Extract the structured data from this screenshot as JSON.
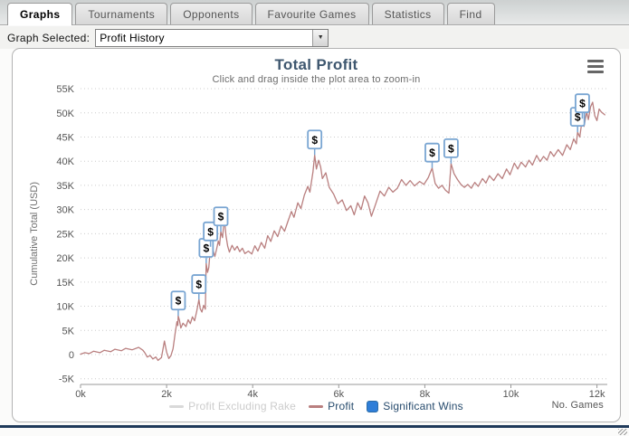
{
  "tabs": [
    {
      "label": "Graphs",
      "active": true
    },
    {
      "label": "Tournaments",
      "active": false
    },
    {
      "label": "Opponents",
      "active": false
    },
    {
      "label": "Favourite Games",
      "active": false
    },
    {
      "label": "Statistics",
      "active": false
    },
    {
      "label": "Find",
      "active": false
    }
  ],
  "graph_selector": {
    "label": "Graph Selected:",
    "value": "Profit History"
  },
  "chart_data": {
    "type": "line",
    "title": "Total Profit",
    "subtitle": "Click and drag inside the plot area to zoom-in",
    "xlabel": "No. Games",
    "ylabel": "Cumulative Total (USD)",
    "x_unit": "thousands of games",
    "xlim": [
      0,
      12.2
    ],
    "ylim": [
      -5,
      55
    ],
    "grid": "horizontal-dotted",
    "legend_position": "bottom",
    "x_tick_values": [
      0,
      2,
      4,
      6,
      8,
      10,
      12
    ],
    "x_ticks": [
      "0k",
      "2k",
      "4k",
      "6k",
      "8k",
      "10k",
      "12k"
    ],
    "y_tick_values": [
      -5,
      0,
      5,
      10,
      15,
      20,
      25,
      30,
      35,
      40,
      45,
      50,
      55
    ],
    "y_ticks": [
      "-5K",
      "0",
      "5K",
      "10K",
      "15K",
      "20K",
      "25K",
      "30K",
      "35K",
      "40K",
      "45K",
      "50K",
      "55K"
    ],
    "colors": {
      "grid": "#cccccc",
      "axis": "#999999",
      "tick_label": "#555555",
      "axis_title": "#707070",
      "marker_fill": "#ffffff",
      "marker_border": "#79a5d2",
      "marker_glyph": "#000000"
    },
    "legend": [
      {
        "label": "Profit Excluding Rake",
        "type": "line",
        "color": "#d9d9d9",
        "disabled": true
      },
      {
        "label": "Profit",
        "type": "line",
        "color": "#b97f7f",
        "disabled": false
      },
      {
        "label": "Significant Wins",
        "type": "box",
        "color": "#2f7ed8",
        "disabled": false
      }
    ],
    "marker_symbol": "$",
    "series": [
      {
        "name": "Profit",
        "color": "#b97f7f",
        "points": [
          [
            0.0,
            0.1
          ],
          [
            0.1,
            0.4
          ],
          [
            0.2,
            0.2
          ],
          [
            0.3,
            0.7
          ],
          [
            0.45,
            0.4
          ],
          [
            0.55,
            0.9
          ],
          [
            0.7,
            0.6
          ],
          [
            0.8,
            1.1
          ],
          [
            0.95,
            0.8
          ],
          [
            1.05,
            1.3
          ],
          [
            1.2,
            1.0
          ],
          [
            1.35,
            1.5
          ],
          [
            1.45,
            0.9
          ],
          [
            1.5,
            0.3
          ],
          [
            1.55,
            -0.5
          ],
          [
            1.62,
            -0.2
          ],
          [
            1.68,
            -0.9
          ],
          [
            1.75,
            -0.5
          ],
          [
            1.8,
            -1.2
          ],
          [
            1.88,
            -0.6
          ],
          [
            1.95,
            2.8
          ],
          [
            2.0,
            0.5
          ],
          [
            2.05,
            -0.8
          ],
          [
            2.1,
            -0.2
          ],
          [
            2.15,
            1.2
          ],
          [
            2.2,
            4.5
          ],
          [
            2.24,
            6.8
          ],
          [
            2.26,
            6.0
          ],
          [
            2.27,
            8.0
          ],
          [
            2.3,
            7.0
          ],
          [
            2.33,
            5.5
          ],
          [
            2.38,
            6.5
          ],
          [
            2.45,
            5.8
          ],
          [
            2.5,
            7.2
          ],
          [
            2.55,
            6.4
          ],
          [
            2.6,
            7.8
          ],
          [
            2.65,
            7.0
          ],
          [
            2.7,
            9.0
          ],
          [
            2.75,
            11.4
          ],
          [
            2.78,
            9.5
          ],
          [
            2.82,
            8.8
          ],
          [
            2.86,
            10.2
          ],
          [
            2.9,
            9.4
          ],
          [
            2.92,
            18.9
          ],
          [
            2.95,
            17.0
          ],
          [
            2.98,
            18.0
          ],
          [
            3.02,
            22.3
          ],
          [
            3.05,
            20.5
          ],
          [
            3.08,
            21.5
          ],
          [
            3.12,
            20.3
          ],
          [
            3.16,
            21.8
          ],
          [
            3.2,
            23.5
          ],
          [
            3.23,
            22.6
          ],
          [
            3.26,
            25.4
          ],
          [
            3.3,
            24.2
          ],
          [
            3.34,
            28.2
          ],
          [
            3.38,
            24.6
          ],
          [
            3.42,
            22.4
          ],
          [
            3.46,
            21.2
          ],
          [
            3.52,
            22.6
          ],
          [
            3.58,
            21.6
          ],
          [
            3.64,
            22.4
          ],
          [
            3.7,
            21.3
          ],
          [
            3.76,
            22.0
          ],
          [
            3.82,
            20.9
          ],
          [
            3.9,
            21.4
          ],
          [
            3.98,
            20.8
          ],
          [
            4.05,
            22.5
          ],
          [
            4.12,
            21.4
          ],
          [
            4.2,
            23.2
          ],
          [
            4.28,
            22.0
          ],
          [
            4.35,
            24.6
          ],
          [
            4.42,
            23.4
          ],
          [
            4.5,
            25.6
          ],
          [
            4.58,
            24.4
          ],
          [
            4.66,
            26.6
          ],
          [
            4.74,
            25.5
          ],
          [
            4.82,
            27.6
          ],
          [
            4.9,
            29.6
          ],
          [
            4.96,
            28.4
          ],
          [
            5.05,
            31.4
          ],
          [
            5.12,
            30.2
          ],
          [
            5.2,
            33.0
          ],
          [
            5.28,
            34.8
          ],
          [
            5.33,
            33.6
          ],
          [
            5.4,
            37.8
          ],
          [
            5.44,
            41.3
          ],
          [
            5.48,
            38.4
          ],
          [
            5.53,
            40.2
          ],
          [
            5.58,
            38.8
          ],
          [
            5.62,
            36.4
          ],
          [
            5.7,
            37.6
          ],
          [
            5.78,
            34.6
          ],
          [
            5.88,
            33.2
          ],
          [
            5.98,
            31.2
          ],
          [
            6.08,
            32.0
          ],
          [
            6.18,
            29.8
          ],
          [
            6.28,
            30.8
          ],
          [
            6.36,
            28.9
          ],
          [
            6.44,
            31.4
          ],
          [
            6.52,
            30.0
          ],
          [
            6.6,
            32.8
          ],
          [
            6.68,
            31.4
          ],
          [
            6.76,
            28.6
          ],
          [
            6.86,
            31.2
          ],
          [
            6.96,
            33.8
          ],
          [
            7.06,
            32.8
          ],
          [
            7.16,
            34.6
          ],
          [
            7.26,
            33.6
          ],
          [
            7.36,
            34.4
          ],
          [
            7.46,
            36.2
          ],
          [
            7.56,
            35.0
          ],
          [
            7.66,
            36.0
          ],
          [
            7.76,
            34.9
          ],
          [
            7.88,
            35.8
          ],
          [
            7.98,
            35.2
          ],
          [
            8.08,
            36.6
          ],
          [
            8.17,
            38.6
          ],
          [
            8.24,
            35.4
          ],
          [
            8.32,
            34.4
          ],
          [
            8.4,
            35.0
          ],
          [
            8.48,
            34.0
          ],
          [
            8.56,
            33.4
          ],
          [
            8.61,
            39.5
          ],
          [
            8.68,
            37.4
          ],
          [
            8.76,
            36.2
          ],
          [
            8.84,
            35.2
          ],
          [
            8.92,
            34.6
          ],
          [
            9.0,
            35.2
          ],
          [
            9.08,
            34.4
          ],
          [
            9.16,
            35.6
          ],
          [
            9.24,
            34.8
          ],
          [
            9.34,
            36.4
          ],
          [
            9.42,
            35.5
          ],
          [
            9.5,
            37.0
          ],
          [
            9.6,
            36.0
          ],
          [
            9.7,
            37.4
          ],
          [
            9.8,
            36.4
          ],
          [
            9.9,
            38.4
          ],
          [
            9.98,
            37.2
          ],
          [
            10.08,
            39.6
          ],
          [
            10.16,
            38.4
          ],
          [
            10.24,
            39.8
          ],
          [
            10.34,
            38.8
          ],
          [
            10.42,
            40.2
          ],
          [
            10.5,
            39.2
          ],
          [
            10.6,
            41.2
          ],
          [
            10.68,
            39.9
          ],
          [
            10.76,
            41.0
          ],
          [
            10.84,
            40.2
          ],
          [
            10.92,
            42.0
          ],
          [
            11.0,
            41.0
          ],
          [
            11.1,
            42.4
          ],
          [
            11.2,
            41.2
          ],
          [
            11.3,
            43.4
          ],
          [
            11.38,
            42.4
          ],
          [
            11.46,
            44.6
          ],
          [
            11.52,
            43.6
          ],
          [
            11.55,
            46.0
          ],
          [
            11.6,
            45.0
          ],
          [
            11.66,
            48.8
          ],
          [
            11.7,
            47.2
          ],
          [
            11.76,
            50.2
          ],
          [
            11.8,
            48.6
          ],
          [
            11.85,
            51.2
          ],
          [
            11.9,
            52.2
          ],
          [
            11.95,
            49.4
          ],
          [
            12.0,
            48.4
          ],
          [
            12.05,
            50.8
          ],
          [
            12.1,
            50.2
          ],
          [
            12.18,
            49.6
          ]
        ]
      }
    ],
    "significant_wins": [
      [
        2.27,
        8.0
      ],
      [
        2.75,
        11.4
      ],
      [
        2.92,
        18.9
      ],
      [
        3.02,
        22.3
      ],
      [
        3.26,
        25.4
      ],
      [
        5.44,
        41.3
      ],
      [
        8.17,
        38.6
      ],
      [
        8.61,
        39.5
      ],
      [
        11.55,
        46.0
      ],
      [
        11.66,
        48.8
      ]
    ]
  },
  "icons": {
    "dropdown_arrow": "▼",
    "chart_menu": "hamburger-menu-icon"
  }
}
